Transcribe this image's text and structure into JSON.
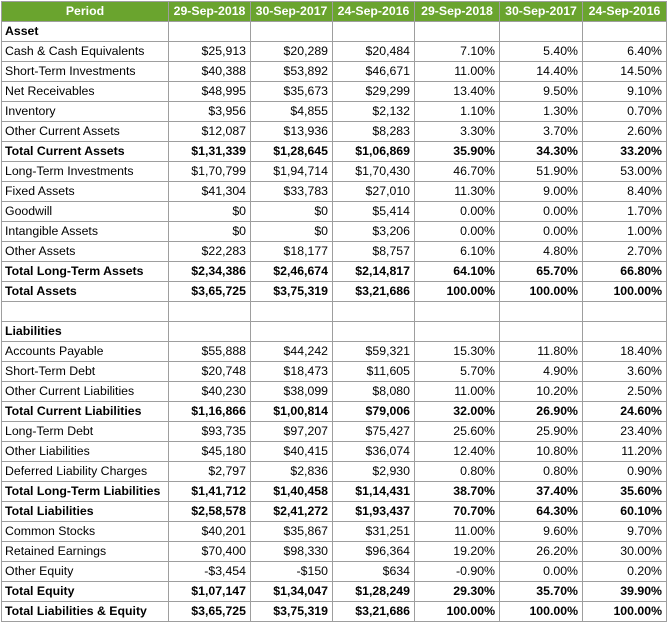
{
  "header": {
    "period": "Period",
    "columns": [
      "29-Sep-2018",
      "30-Sep-2017",
      "24-Sep-2016",
      "29-Sep-2018",
      "30-Sep-2017",
      "24-Sep-2016"
    ]
  },
  "sections": [
    {
      "title": "Asset",
      "rows": [
        {
          "label": "Cash & Cash Equivalents",
          "values": [
            "$25,913",
            "$20,289",
            "$20,484",
            "7.10%",
            "5.40%",
            "6.40%"
          ],
          "bold": false
        },
        {
          "label": "Short-Term Investments",
          "values": [
            "$40,388",
            "$53,892",
            "$46,671",
            "11.00%",
            "14.40%",
            "14.50%"
          ],
          "bold": false
        },
        {
          "label": "Net Receivables",
          "values": [
            "$48,995",
            "$35,673",
            "$29,299",
            "13.40%",
            "9.50%",
            "9.10%"
          ],
          "bold": false
        },
        {
          "label": "Inventory",
          "values": [
            "$3,956",
            "$4,855",
            "$2,132",
            "1.10%",
            "1.30%",
            "0.70%"
          ],
          "bold": false
        },
        {
          "label": "Other Current Assets",
          "values": [
            "$12,087",
            "$13,936",
            "$8,283",
            "3.30%",
            "3.70%",
            "2.60%"
          ],
          "bold": false
        },
        {
          "label": "Total Current Assets",
          "values": [
            "$1,31,339",
            "$1,28,645",
            "$1,06,869",
            "35.90%",
            "34.30%",
            "33.20%"
          ],
          "bold": true
        },
        {
          "label": "Long-Term Investments",
          "values": [
            "$1,70,799",
            "$1,94,714",
            "$1,70,430",
            "46.70%",
            "51.90%",
            "53.00%"
          ],
          "bold": false
        },
        {
          "label": "Fixed Assets",
          "values": [
            "$41,304",
            "$33,783",
            "$27,010",
            "11.30%",
            "9.00%",
            "8.40%"
          ],
          "bold": false
        },
        {
          "label": "Goodwill",
          "values": [
            "$0",
            "$0",
            "$5,414",
            "0.00%",
            "0.00%",
            "1.70%"
          ],
          "bold": false
        },
        {
          "label": "Intangible Assets",
          "values": [
            "$0",
            "$0",
            "$3,206",
            "0.00%",
            "0.00%",
            "1.00%"
          ],
          "bold": false
        },
        {
          "label": "Other Assets",
          "values": [
            "$22,283",
            "$18,177",
            "$8,757",
            "6.10%",
            "4.80%",
            "2.70%"
          ],
          "bold": false
        },
        {
          "label": "Total Long-Term Assets",
          "values": [
            "$2,34,386",
            "$2,46,674",
            "$2,14,817",
            "64.10%",
            "65.70%",
            "66.80%"
          ],
          "bold": true
        },
        {
          "label": "Total Assets",
          "values": [
            "$3,65,725",
            "$3,75,319",
            "$3,21,686",
            "100.00%",
            "100.00%",
            "100.00%"
          ],
          "bold": true
        }
      ]
    },
    {
      "title": "Liabilities",
      "rows": [
        {
          "label": "Accounts Payable",
          "values": [
            "$55,888",
            "$44,242",
            "$59,321",
            "15.30%",
            "11.80%",
            "18.40%"
          ],
          "bold": false
        },
        {
          "label": "Short-Term Debt",
          "values": [
            "$20,748",
            "$18,473",
            "$11,605",
            "5.70%",
            "4.90%",
            "3.60%"
          ],
          "bold": false
        },
        {
          "label": "Other Current Liabilities",
          "values": [
            "$40,230",
            "$38,099",
            "$8,080",
            "11.00%",
            "10.20%",
            "2.50%"
          ],
          "bold": false
        },
        {
          "label": "Total Current Liabilities",
          "values": [
            "$1,16,866",
            "$1,00,814",
            "$79,006",
            "32.00%",
            "26.90%",
            "24.60%"
          ],
          "bold": true
        },
        {
          "label": "Long-Term Debt",
          "values": [
            "$93,735",
            "$97,207",
            "$75,427",
            "25.60%",
            "25.90%",
            "23.40%"
          ],
          "bold": false
        },
        {
          "label": "Other Liabilities",
          "values": [
            "$45,180",
            "$40,415",
            "$36,074",
            "12.40%",
            "10.80%",
            "11.20%"
          ],
          "bold": false
        },
        {
          "label": "Deferred Liability Charges",
          "values": [
            "$2,797",
            "$2,836",
            "$2,930",
            "0.80%",
            "0.80%",
            "0.90%"
          ],
          "bold": false
        },
        {
          "label": "Total Long-Term Liabilities",
          "values": [
            "$1,41,712",
            "$1,40,458",
            "$1,14,431",
            "38.70%",
            "37.40%",
            "35.60%"
          ],
          "bold": true
        },
        {
          "label": "Total Liabilities",
          "values": [
            "$2,58,578",
            "$2,41,272",
            "$1,93,437",
            "70.70%",
            "64.30%",
            "60.10%"
          ],
          "bold": true
        },
        {
          "label": "Common Stocks",
          "values": [
            "$40,201",
            "$35,867",
            "$31,251",
            "11.00%",
            "9.60%",
            "9.70%"
          ],
          "bold": false
        },
        {
          "label": "Retained Earnings",
          "values": [
            "$70,400",
            "$98,330",
            "$96,364",
            "19.20%",
            "26.20%",
            "30.00%"
          ],
          "bold": false
        },
        {
          "label": "Other Equity",
          "values": [
            "-$3,454",
            "-$150",
            "$634",
            "-0.90%",
            "0.00%",
            "0.20%"
          ],
          "bold": false
        },
        {
          "label": "Total Equity",
          "values": [
            "$1,07,147",
            "$1,34,047",
            "$1,28,249",
            "29.30%",
            "35.70%",
            "39.90%"
          ],
          "bold": true
        },
        {
          "label": "Total Liabilities & Equity",
          "values": [
            "$3,65,725",
            "$3,75,319",
            "$3,21,686",
            "100.00%",
            "100.00%",
            "100.00%"
          ],
          "bold": true
        }
      ]
    }
  ],
  "colors": {
    "header_bg": "#6aa42e",
    "header_text": "#ffffff",
    "grid": "#9e9e9e"
  }
}
